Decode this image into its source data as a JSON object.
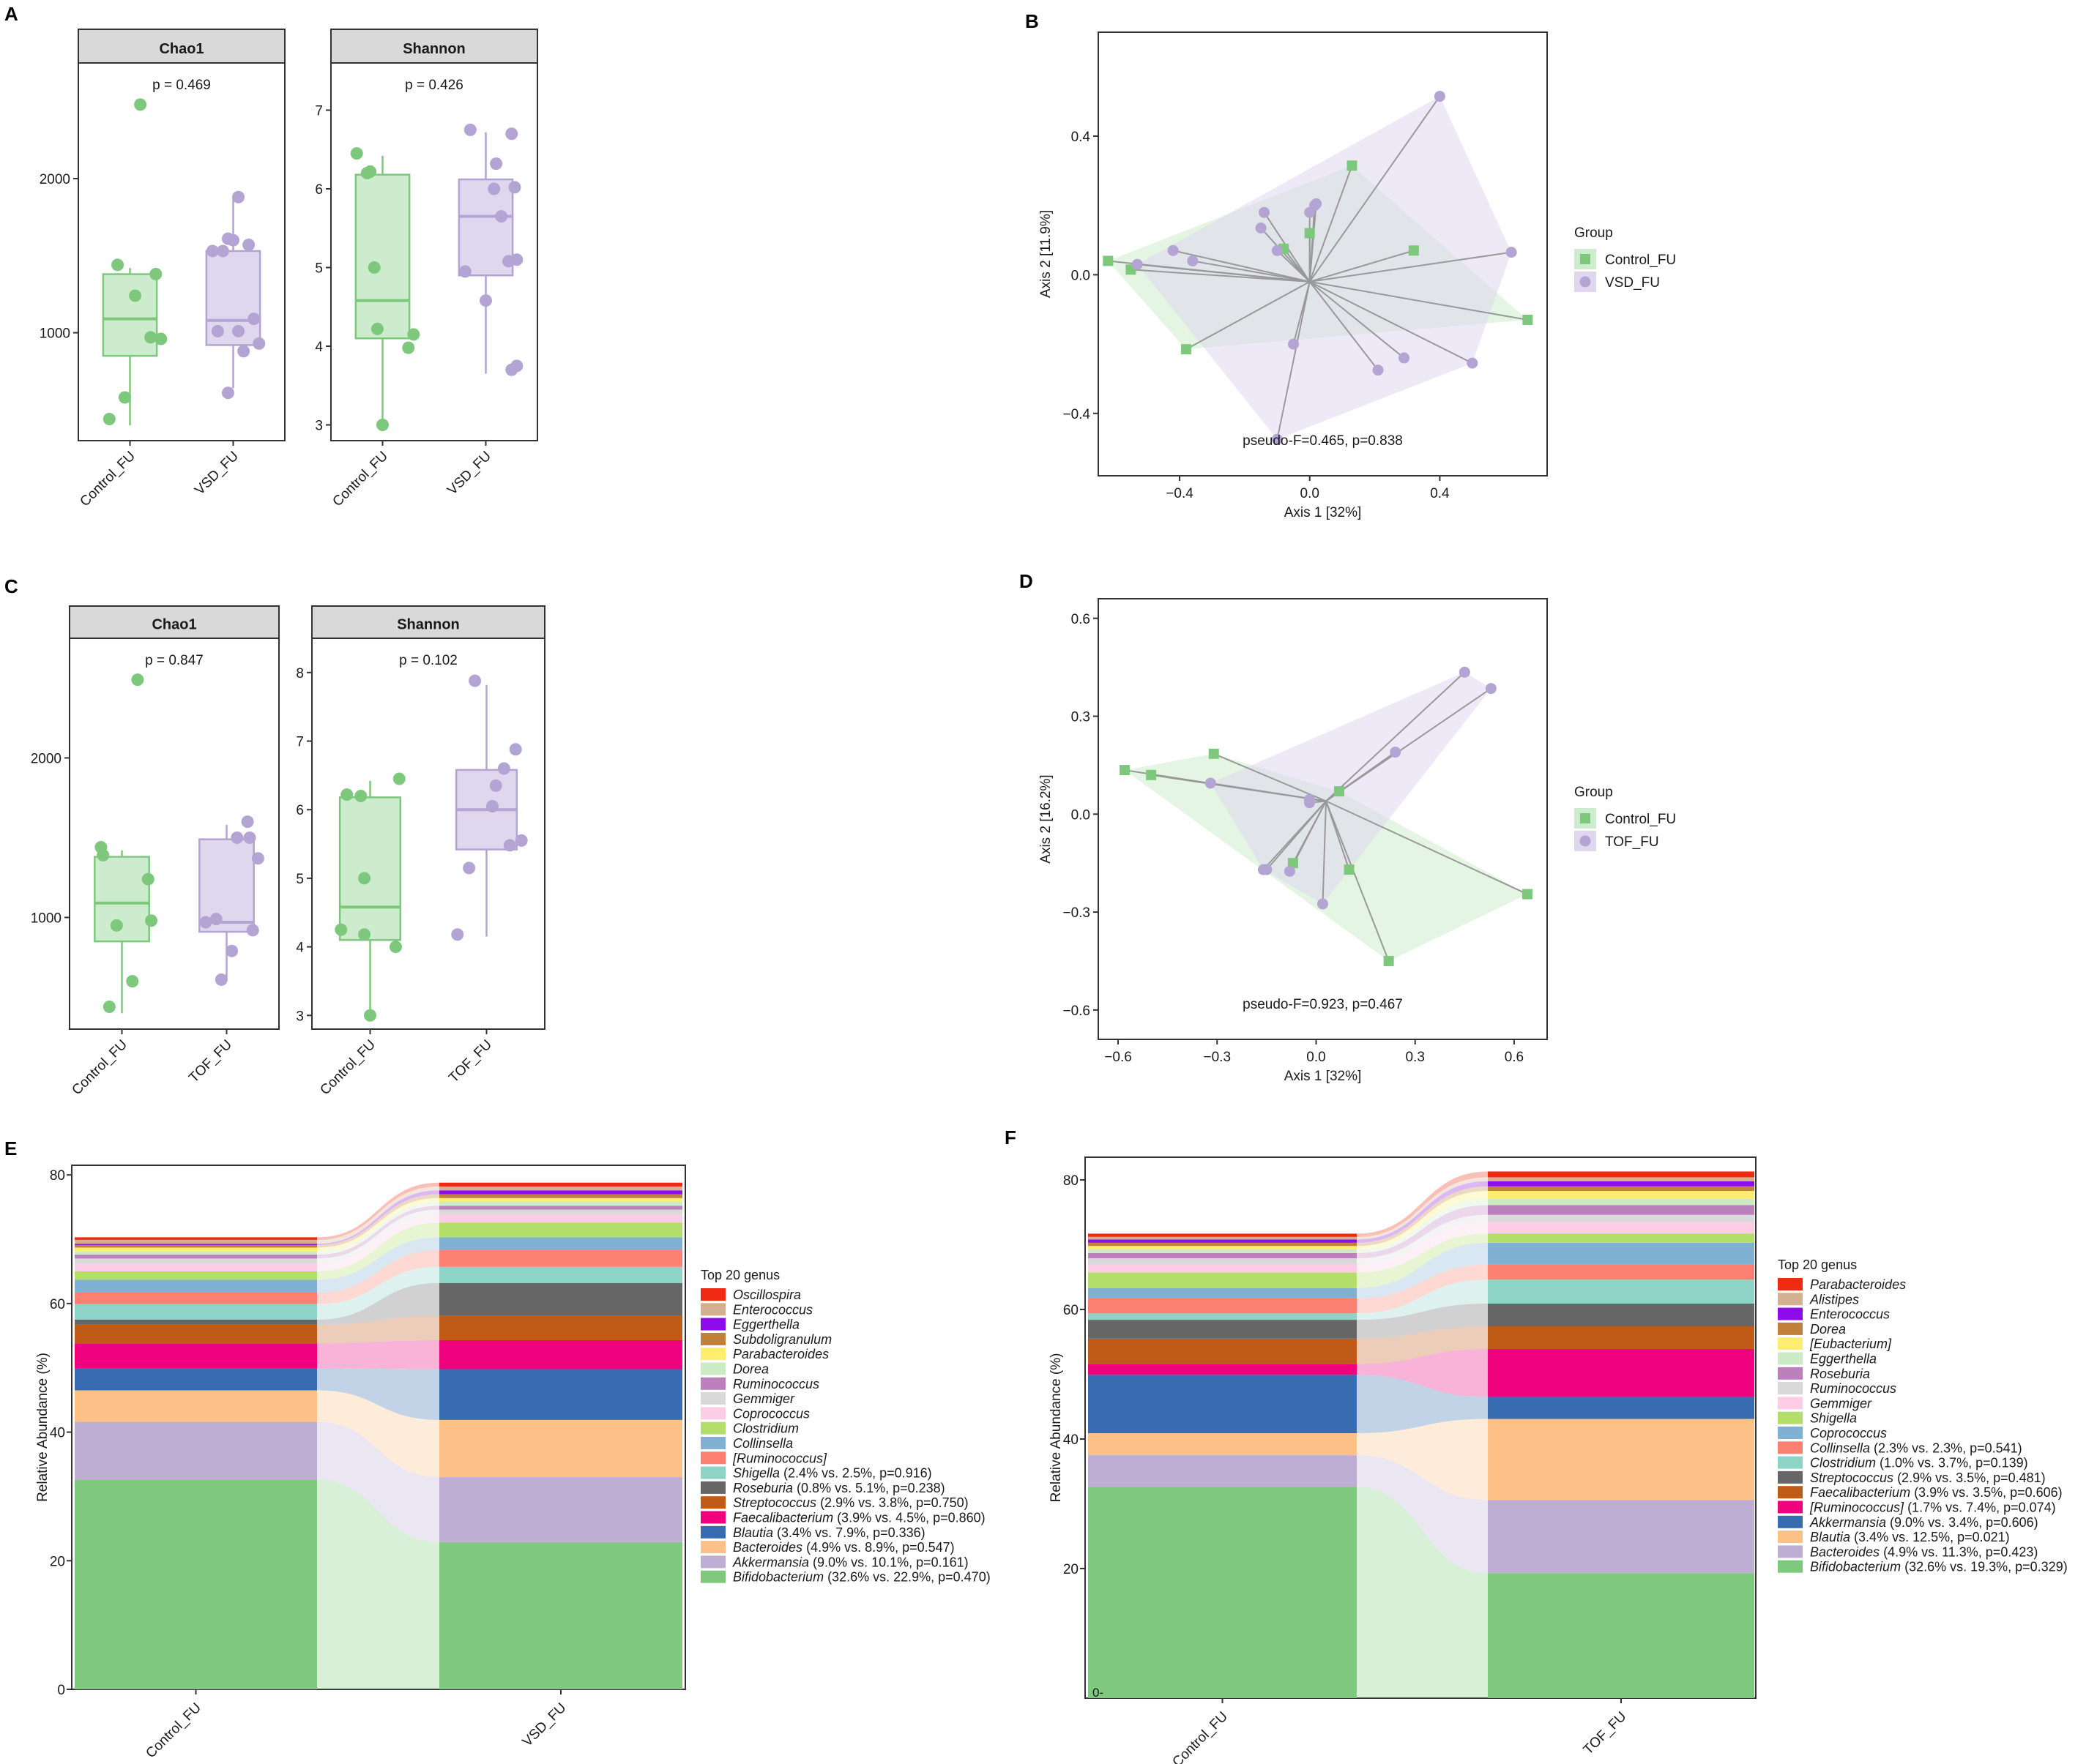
{
  "colors": {
    "control": "#7ec87e",
    "control_fill": "#cdeccd",
    "treat": "#b3a4d4",
    "treat_fill": "#ded7ee",
    "strip": "#d9d9d9",
    "ribbon_line": "#999999"
  },
  "panel_labels": [
    "A",
    "B",
    "C",
    "D",
    "E",
    "F"
  ],
  "chart_data": [
    {
      "id": "A-chao1",
      "type": "box",
      "strip": "Chao1",
      "pvalue": "p = 0.469",
      "categories": [
        "Control_FU",
        "VSD_FU"
      ],
      "ylim": [
        300,
        2750
      ],
      "yticks": [
        1000,
        2000
      ],
      "boxes": [
        {
          "q1": 850,
          "median": 1090,
          "q3": 1380,
          "lo": 400,
          "hi": 1420
        },
        {
          "q1": 920,
          "median": 1080,
          "q3": 1530,
          "lo": 640,
          "hi": 1880
        }
      ],
      "points": [
        [
          [
            0.8,
            440
          ],
          [
            0.95,
            580
          ],
          [
            1.1,
            2480
          ],
          [
            0.88,
            1440
          ],
          [
            1.05,
            1240
          ],
          [
            1.25,
            1380
          ],
          [
            1.3,
            960
          ],
          [
            1.2,
            970
          ]
        ],
        [
          [
            1.8,
            1530
          ],
          [
            1.9,
            1530
          ],
          [
            1.95,
            1610
          ],
          [
            2.05,
            1880
          ],
          [
            2.0,
            1600
          ],
          [
            2.15,
            1570
          ],
          [
            2.2,
            1090
          ],
          [
            1.85,
            1010
          ],
          [
            2.1,
            880
          ],
          [
            2.25,
            930
          ],
          [
            1.95,
            610
          ],
          [
            2.05,
            1010
          ]
        ]
      ]
    },
    {
      "id": "A-shannon",
      "type": "box",
      "strip": "Shannon",
      "pvalue": "p = 0.426",
      "categories": [
        "Control_FU",
        "VSD_FU"
      ],
      "ylim": [
        2.8,
        7.6
      ],
      "yticks": [
        3,
        4,
        5,
        6,
        7
      ],
      "boxes": [
        {
          "q1": 4.1,
          "median": 4.58,
          "q3": 6.18,
          "lo": 3.0,
          "hi": 6.42
        },
        {
          "q1": 4.9,
          "median": 5.65,
          "q3": 6.12,
          "lo": 3.65,
          "hi": 6.72
        }
      ],
      "points": [
        [
          [
            0.75,
            6.45
          ],
          [
            0.85,
            6.2
          ],
          [
            0.88,
            6.22
          ],
          [
            0.92,
            5.0
          ],
          [
            0.95,
            4.22
          ],
          [
            1.0,
            3.0
          ],
          [
            1.3,
            4.15
          ],
          [
            1.25,
            3.98
          ]
        ],
        [
          [
            1.85,
            6.75
          ],
          [
            2.1,
            6.32
          ],
          [
            2.08,
            6.0
          ],
          [
            2.25,
            6.7
          ],
          [
            2.28,
            6.02
          ],
          [
            2.15,
            5.65
          ],
          [
            2.22,
            5.08
          ],
          [
            2.3,
            5.1
          ],
          [
            1.8,
            4.95
          ],
          [
            2.0,
            4.58
          ],
          [
            2.25,
            3.7
          ],
          [
            2.3,
            3.75
          ]
        ]
      ]
    },
    {
      "id": "B-pcoa",
      "type": "scatter",
      "xlabel": "Axis 1 [32%]",
      "ylabel": "Axis 2 [11.9%]",
      "xlim": [
        -0.65,
        0.73
      ],
      "ylim": [
        -0.58,
        0.7
      ],
      "xticks": [
        -0.4,
        0.0,
        0.4
      ],
      "yticks": [
        -0.4,
        0.0,
        0.4
      ],
      "annotation": "pseudo-F=0.465, p=0.838",
      "centroid": [
        0.0,
        -0.02
      ],
      "legend_title": "Group",
      "legend": [
        "Control_FU",
        "VSD_FU"
      ],
      "series": [
        {
          "name": "Control_FU",
          "marker": "square",
          "x": [
            -0.62,
            -0.55,
            -0.38,
            -0.08,
            0.0,
            0.13,
            0.32,
            0.67
          ],
          "y": [
            0.04,
            0.015,
            -0.215,
            0.075,
            0.12,
            0.315,
            0.07,
            -0.13
          ]
        },
        {
          "name": "VSD_FU",
          "marker": "circle",
          "x": [
            0.4,
            -0.53,
            -0.42,
            -0.36,
            -0.15,
            -0.14,
            -0.1,
            0.0,
            0.02,
            0.62,
            -0.05,
            0.21,
            0.29,
            0.5,
            -0.1,
            0.015
          ],
          "y": [
            0.515,
            0.03,
            0.07,
            0.04,
            0.135,
            0.18,
            0.07,
            0.18,
            0.205,
            0.065,
            -0.2,
            -0.275,
            -0.24,
            -0.255,
            -0.475,
            0.2
          ]
        }
      ]
    },
    {
      "id": "C-chao1",
      "type": "box",
      "strip": "Chao1",
      "pvalue": "p = 0.847",
      "categories": [
        "Control_FU",
        "TOF_FU"
      ],
      "ylim": [
        300,
        2750
      ],
      "yticks": [
        1000,
        2000
      ],
      "boxes": [
        {
          "q1": 850,
          "median": 1090,
          "q3": 1380,
          "lo": 400,
          "hi": 1420
        },
        {
          "q1": 910,
          "median": 970,
          "q3": 1490,
          "lo": 610,
          "hi": 1580
        }
      ],
      "points": [
        [
          [
            0.8,
            1440
          ],
          [
            0.82,
            1390
          ],
          [
            0.95,
            950
          ],
          [
            1.15,
            2490
          ],
          [
            1.25,
            1240
          ],
          [
            1.28,
            980
          ],
          [
            1.1,
            600
          ],
          [
            0.88,
            440
          ]
        ],
        [
          [
            1.8,
            970
          ],
          [
            1.9,
            990
          ],
          [
            2.2,
            1600
          ],
          [
            2.1,
            1500
          ],
          [
            2.22,
            1500
          ],
          [
            2.3,
            1370
          ],
          [
            2.25,
            920
          ],
          [
            2.05,
            790
          ],
          [
            1.95,
            610
          ]
        ]
      ]
    },
    {
      "id": "C-shannon",
      "type": "box",
      "strip": "Shannon",
      "pvalue": "p = 0.102",
      "categories": [
        "Control_FU",
        "TOF_FU"
      ],
      "ylim": [
        2.8,
        8.5
      ],
      "yticks": [
        3,
        4,
        5,
        6,
        7,
        8
      ],
      "boxes": [
        {
          "q1": 4.1,
          "median": 4.58,
          "q3": 6.18,
          "lo": 3.0,
          "hi": 6.42
        },
        {
          "q1": 5.42,
          "median": 6.0,
          "q3": 6.58,
          "lo": 4.15,
          "hi": 7.82
        }
      ],
      "points": [
        [
          [
            0.8,
            6.22
          ],
          [
            0.92,
            6.2
          ],
          [
            1.25,
            6.45
          ],
          [
            0.95,
            5.0
          ],
          [
            0.75,
            4.25
          ],
          [
            0.95,
            4.18
          ],
          [
            1.22,
            4.0
          ],
          [
            1.0,
            3.0
          ]
        ],
        [
          [
            1.9,
            7.88
          ],
          [
            2.25,
            6.88
          ],
          [
            2.15,
            6.6
          ],
          [
            2.08,
            6.35
          ],
          [
            2.05,
            6.05
          ],
          [
            2.3,
            5.55
          ],
          [
            2.2,
            5.48
          ],
          [
            1.85,
            5.15
          ],
          [
            1.75,
            4.18
          ]
        ]
      ]
    },
    {
      "id": "D-pcoa",
      "type": "scatter",
      "xlabel": "Axis 1 [32%]",
      "ylabel": "Axis 2 [16.2%]",
      "xlim": [
        -0.66,
        0.7
      ],
      "ylim": [
        -0.69,
        0.66
      ],
      "xticks": [
        -0.6,
        -0.3,
        0.0,
        0.3,
        0.6
      ],
      "yticks": [
        -0.6,
        -0.3,
        0.0,
        0.3,
        0.6
      ],
      "annotation": "pseudo-F=0.923, p=0.467",
      "centroid": [
        0.03,
        0.04
      ],
      "legend_title": "Group",
      "legend": [
        "Control_FU",
        "TOF_FU"
      ],
      "series": [
        {
          "name": "Control_FU",
          "marker": "square",
          "x": [
            -0.58,
            -0.5,
            -0.31,
            0.07,
            -0.07,
            0.1,
            0.22,
            0.64
          ],
          "y": [
            0.135,
            0.12,
            0.185,
            0.07,
            -0.15,
            -0.17,
            -0.45,
            -0.245
          ]
        },
        {
          "name": "TOF_FU",
          "marker": "circle",
          "x": [
            0.45,
            0.53,
            0.24,
            -0.32,
            -0.15,
            -0.02,
            -0.02,
            -0.08,
            -0.16,
            0.02
          ],
          "y": [
            0.435,
            0.385,
            0.19,
            0.095,
            -0.17,
            0.045,
            0.035,
            -0.175,
            -0.17,
            -0.275
          ]
        }
      ]
    },
    {
      "id": "E-stack",
      "type": "stacked_bar",
      "ylabel": "Relative Abundance (%)",
      "categories": [
        "Control_FU",
        "VSD_FU"
      ],
      "ylim": [
        0,
        81.5
      ],
      "yticks": [
        0,
        20,
        40,
        60,
        80
      ],
      "legend_title": "Top 20 genus",
      "series": [
        {
          "name": "Bifidobacterium",
          "stat": " (32.6% vs. 22.9%, p=0.470)",
          "color": "#7fc97f",
          "values": [
            32.6,
            22.9
          ]
        },
        {
          "name": "Akkermansia",
          "stat": " (9.0% vs. 10.1%, p=0.161)",
          "color": "#beaed4",
          "values": [
            9.0,
            10.1
          ]
        },
        {
          "name": "Bacteroides",
          "stat": " (4.9% vs. 8.9%, p=0.547)",
          "color": "#fdc086",
          "values": [
            4.9,
            8.9
          ]
        },
        {
          "name": "Blautia",
          "stat": " (3.4% vs. 7.9%, p=0.336)",
          "color": "#386cb0",
          "values": [
            3.4,
            7.9
          ]
        },
        {
          "name": "Faecalibacterium",
          "stat": " (3.9% vs. 4.5%, p=0.860)",
          "color": "#f0027f",
          "values": [
            3.9,
            4.5
          ]
        },
        {
          "name": "Streptococcus",
          "stat": " (2.9% vs. 3.8%, p=0.750)",
          "color": "#bf5b17",
          "values": [
            2.9,
            3.8
          ]
        },
        {
          "name": "Roseburia",
          "stat": " (0.8% vs. 5.1%, p=0.238)",
          "color": "#666666",
          "values": [
            0.8,
            5.1
          ]
        },
        {
          "name": "Shigella",
          "stat": " (2.4% vs. 2.5%, p=0.916)",
          "color": "#8dd3c7",
          "values": [
            2.4,
            2.5
          ]
        },
        {
          "name": "[Ruminococcus]",
          "stat": "",
          "color": "#fb8072",
          "values": [
            1.8,
            2.6
          ]
        },
        {
          "name": "Collinsella",
          "stat": "",
          "color": "#80b1d3",
          "values": [
            2.0,
            2.0
          ]
        },
        {
          "name": "Clostridium",
          "stat": "",
          "color": "#b3de69",
          "values": [
            1.3,
            2.3
          ]
        },
        {
          "name": "Coprococcus",
          "stat": "",
          "color": "#fccde5",
          "values": [
            1.2,
            1.2
          ]
        },
        {
          "name": "Gemmiger",
          "stat": "",
          "color": "#d9d9d9",
          "values": [
            0.8,
            0.8
          ]
        },
        {
          "name": "Ruminococcus",
          "stat": "",
          "color": "#bc80bd",
          "values": [
            0.6,
            0.6
          ]
        },
        {
          "name": "Dorea",
          "stat": "",
          "color": "#ccebc5",
          "values": [
            0.5,
            0.6
          ]
        },
        {
          "name": "Parabacteroides",
          "stat": "",
          "color": "#ffed6f",
          "values": [
            0.6,
            0.6
          ]
        },
        {
          "name": "Subdoligranulum",
          "stat": "",
          "color": "#c1813b",
          "values": [
            0.4,
            0.6
          ]
        },
        {
          "name": "Eggerthella",
          "stat": "",
          "color": "#8e0ce9",
          "values": [
            0.2,
            0.6
          ]
        },
        {
          "name": "Enterococcus",
          "stat": "",
          "color": "#d3b08f",
          "values": [
            0.6,
            0.6
          ]
        },
        {
          "name": "Oscillospira",
          "stat": "",
          "color": "#ef2a12",
          "values": [
            0.4,
            0.6
          ]
        }
      ]
    },
    {
      "id": "F-stack",
      "type": "stacked_bar",
      "ylabel": "Relative Abundance (%)",
      "categories": [
        "Control_FU",
        "TOF_FU"
      ],
      "ylim": [
        0,
        83.5
      ],
      "yticks": [
        0,
        20,
        40,
        60,
        80
      ],
      "legend_title": "Top 20 genus",
      "series": [
        {
          "name": "Bifidobacterium",
          "stat": " (32.6% vs. 19.3%, p=0.329)",
          "color": "#7fc97f",
          "values": [
            32.6,
            19.3
          ]
        },
        {
          "name": "Bacteroides",
          "stat": " (4.9% vs. 11.3%, p=0.423)",
          "color": "#beaed4",
          "values": [
            4.9,
            11.3
          ]
        },
        {
          "name": "Blautia",
          "stat": " (3.4% vs. 12.5%, p=0.021)",
          "color": "#fdc086",
          "values": [
            3.4,
            12.5
          ]
        },
        {
          "name": "Akkermansia",
          "stat": " (9.0% vs. 3.4%, p=0.606)",
          "color": "#386cb0",
          "values": [
            9.0,
            3.4
          ]
        },
        {
          "name": "[Ruminococcus]",
          "stat": " (1.7% vs. 7.4%, p=0.074)",
          "color": "#f0027f",
          "values": [
            1.7,
            7.4
          ]
        },
        {
          "name": "Faecalibacterium",
          "stat": " (3.9% vs. 3.5%, p=0.606)",
          "color": "#bf5b17",
          "values": [
            3.9,
            3.5
          ]
        },
        {
          "name": "Streptococcus",
          "stat": " (2.9% vs. 3.5%, p=0.481)",
          "color": "#666666",
          "values": [
            2.9,
            3.5
          ]
        },
        {
          "name": "Clostridium",
          "stat": " (1.0% vs. 3.7%, p=0.139)",
          "color": "#8dd3c7",
          "values": [
            1.0,
            3.7
          ]
        },
        {
          "name": "Collinsella",
          "stat": " (2.3% vs. 2.3%, p=0.541)",
          "color": "#fb8072",
          "values": [
            2.3,
            2.3
          ]
        },
        {
          "name": "Coprococcus",
          "stat": "",
          "color": "#80b1d3",
          "values": [
            1.6,
            3.4
          ]
        },
        {
          "name": "Shigella",
          "stat": "",
          "color": "#b3de69",
          "values": [
            2.4,
            1.4
          ]
        },
        {
          "name": "Gemmiger",
          "stat": "",
          "color": "#fccde5",
          "values": [
            1.3,
            1.8
          ]
        },
        {
          "name": "Ruminococcus",
          "stat": "",
          "color": "#d9d9d9",
          "values": [
            0.9,
            1.1
          ]
        },
        {
          "name": "Roseburia",
          "stat": "",
          "color": "#bc80bd",
          "values": [
            0.8,
            1.5
          ]
        },
        {
          "name": "Eggerthella",
          "stat": "",
          "color": "#ccebc5",
          "values": [
            0.6,
            1.0
          ]
        },
        {
          "name": "[Eubacterium]",
          "stat": "",
          "color": "#ffed6f",
          "values": [
            0.5,
            1.2
          ]
        },
        {
          "name": "Dorea",
          "stat": "",
          "color": "#c1813b",
          "values": [
            0.5,
            0.7
          ]
        },
        {
          "name": "Enterococcus",
          "stat": "",
          "color": "#8e0ce9",
          "values": [
            0.5,
            0.8
          ]
        },
        {
          "name": "Alistipes",
          "stat": "",
          "color": "#d3b08f",
          "values": [
            0.4,
            0.6
          ]
        },
        {
          "name": "Parabacteroides",
          "stat": "",
          "color": "#ef2a12",
          "values": [
            0.5,
            0.9
          ]
        }
      ]
    }
  ]
}
